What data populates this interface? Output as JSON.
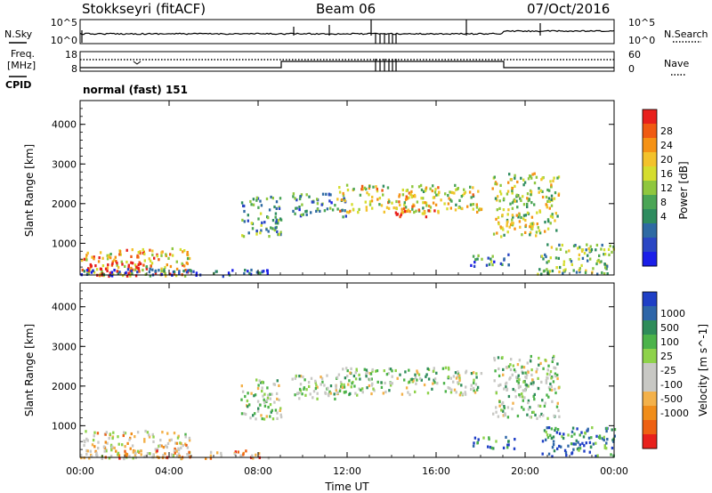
{
  "header": {
    "title": "Stokkseyri (fitACF)",
    "beam": "Beam 06",
    "date": "07/Oct/2016"
  },
  "nsky_panel": {
    "left_label": "N.Sky",
    "left_ticks": [
      "10^5",
      "10^0"
    ],
    "right_ticks": [
      "10^5",
      "10^0"
    ],
    "right_label": "N.Search"
  },
  "freq_panel": {
    "left_label_1": "Freq.",
    "left_label_2": "[MHz]",
    "left_ticks": [
      "18",
      "8"
    ],
    "right_ticks": [
      "60",
      "0"
    ],
    "right_label": "Nave"
  },
  "cpid": {
    "label": "CPID",
    "value": "normal (fast) 151"
  },
  "chart_data": [
    {
      "type": "heatmap",
      "name": "Power",
      "ylabel": "Slant Range [km]",
      "ylim": [
        200,
        4600
      ],
      "yticks": [
        1000,
        2000,
        3000,
        4000
      ],
      "xlim": [
        0,
        24
      ],
      "colorbar_label": "Power [dB]",
      "colorbar_ticks": [
        "28",
        "24",
        "20",
        "16",
        "12",
        "8",
        "4"
      ],
      "colors": [
        "#e8201c",
        "#f05a12",
        "#f59215",
        "#f3c22b",
        "#d5dd2e",
        "#8fc73e",
        "#4aa555",
        "#2e8c5f",
        "#2e6aa3",
        "#2a46c4",
        "#1a1ee8"
      ],
      "echo_regions": [
        {
          "t": [
            0.0,
            5.0
          ],
          "r": [
            200,
            900
          ],
          "level": 0.7
        },
        {
          "t": [
            0.3,
            3.0
          ],
          "r": [
            200,
            550
          ],
          "level": 1.0
        },
        {
          "t": [
            0.0,
            8.5
          ],
          "r": [
            200,
            400
          ],
          "level": 0.2
        },
        {
          "t": [
            7.2,
            9.0
          ],
          "r": [
            1200,
            2200
          ],
          "level": 0.35
        },
        {
          "t": [
            9.5,
            12.0
          ],
          "r": [
            1700,
            2300
          ],
          "level": 0.3
        },
        {
          "t": [
            11.5,
            18.0
          ],
          "r": [
            1800,
            2500
          ],
          "level": 0.6
        },
        {
          "t": [
            14.0,
            16.0
          ],
          "r": [
            1700,
            2000
          ],
          "level": 0.85
        },
        {
          "t": [
            17.5,
            19.5
          ],
          "r": [
            450,
            750
          ],
          "level": 0.3
        },
        {
          "t": [
            18.5,
            21.5
          ],
          "r": [
            1200,
            2800
          ],
          "level": 0.55
        },
        {
          "t": [
            20.5,
            24.0
          ],
          "r": [
            250,
            1000
          ],
          "level": 0.45
        }
      ]
    },
    {
      "type": "heatmap",
      "name": "Velocity",
      "ylabel": "Slant Range [km]",
      "ylim": [
        200,
        4600
      ],
      "yticks": [
        1000,
        2000,
        3000,
        4000
      ],
      "xlim": [
        0,
        24
      ],
      "xticks": [
        "00:00",
        "04:00",
        "08:00",
        "12:00",
        "16:00",
        "20:00",
        "00:00"
      ],
      "xlabel": "Time UT",
      "colorbar_label": "Velocity [m s^-1]",
      "colorbar_ticks": [
        "1000",
        "500",
        "100",
        "25",
        "-25",
        "-100",
        "-500",
        "-1000"
      ],
      "colors": [
        "#1f3fc6",
        "#2e66a8",
        "#2f8c5a",
        "#4cb34a",
        "#8ed24a",
        "#c8c8c4",
        "#c8c8c4",
        "#f3b14a",
        "#f08d1a",
        "#ee6112",
        "#e8201c"
      ],
      "echo_regions": [
        {
          "t": [
            0.0,
            5.0
          ],
          "r": [
            200,
            900
          ],
          "level": 0.4
        },
        {
          "t": [
            0.0,
            8.5
          ],
          "r": [
            200,
            400
          ],
          "level": 0.3
        },
        {
          "t": [
            7.2,
            9.0
          ],
          "r": [
            1200,
            2200
          ],
          "level": 0.55
        },
        {
          "t": [
            9.5,
            12.0
          ],
          "r": [
            1700,
            2300
          ],
          "level": 0.55
        },
        {
          "t": [
            11.5,
            18.0
          ],
          "r": [
            1800,
            2500
          ],
          "level": 0.55
        },
        {
          "t": [
            17.5,
            19.5
          ],
          "r": [
            450,
            750
          ],
          "level": 0.85
        },
        {
          "t": [
            18.5,
            21.5
          ],
          "r": [
            1200,
            2800
          ],
          "level": 0.55
        },
        {
          "t": [
            20.5,
            24.0
          ],
          "r": [
            250,
            1000
          ],
          "level": 0.8
        }
      ]
    }
  ]
}
